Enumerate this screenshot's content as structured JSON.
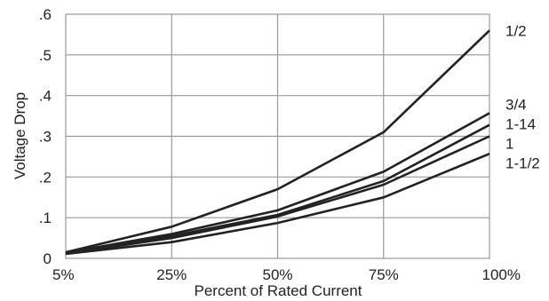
{
  "chart_data": {
    "type": "line",
    "xlabel": "Percent of Rated Current",
    "ylabel": "Voltage Drop",
    "categories": [
      "5%",
      "25%",
      "50%",
      "75%",
      "100%"
    ],
    "y_ticks": [
      "0",
      ".1",
      ".2",
      ".3",
      ".4",
      ".5",
      ".6"
    ],
    "ylim": [
      0,
      0.6
    ],
    "grid": true,
    "series": [
      {
        "name": "1/2",
        "values": [
          0.015,
          0.078,
          0.17,
          0.31,
          0.56
        ]
      },
      {
        "name": "3/4",
        "values": [
          0.014,
          0.06,
          0.118,
          0.213,
          0.357
        ]
      },
      {
        "name": "1-14",
        "values": [
          0.013,
          0.055,
          0.107,
          0.19,
          0.328
        ]
      },
      {
        "name": "1",
        "values": [
          0.012,
          0.05,
          0.103,
          0.181,
          0.3
        ]
      },
      {
        "name": "1-1/2",
        "values": [
          0.011,
          0.04,
          0.087,
          0.15,
          0.257
        ]
      }
    ],
    "line_color": "#222222",
    "grid_color": "#999999"
  }
}
